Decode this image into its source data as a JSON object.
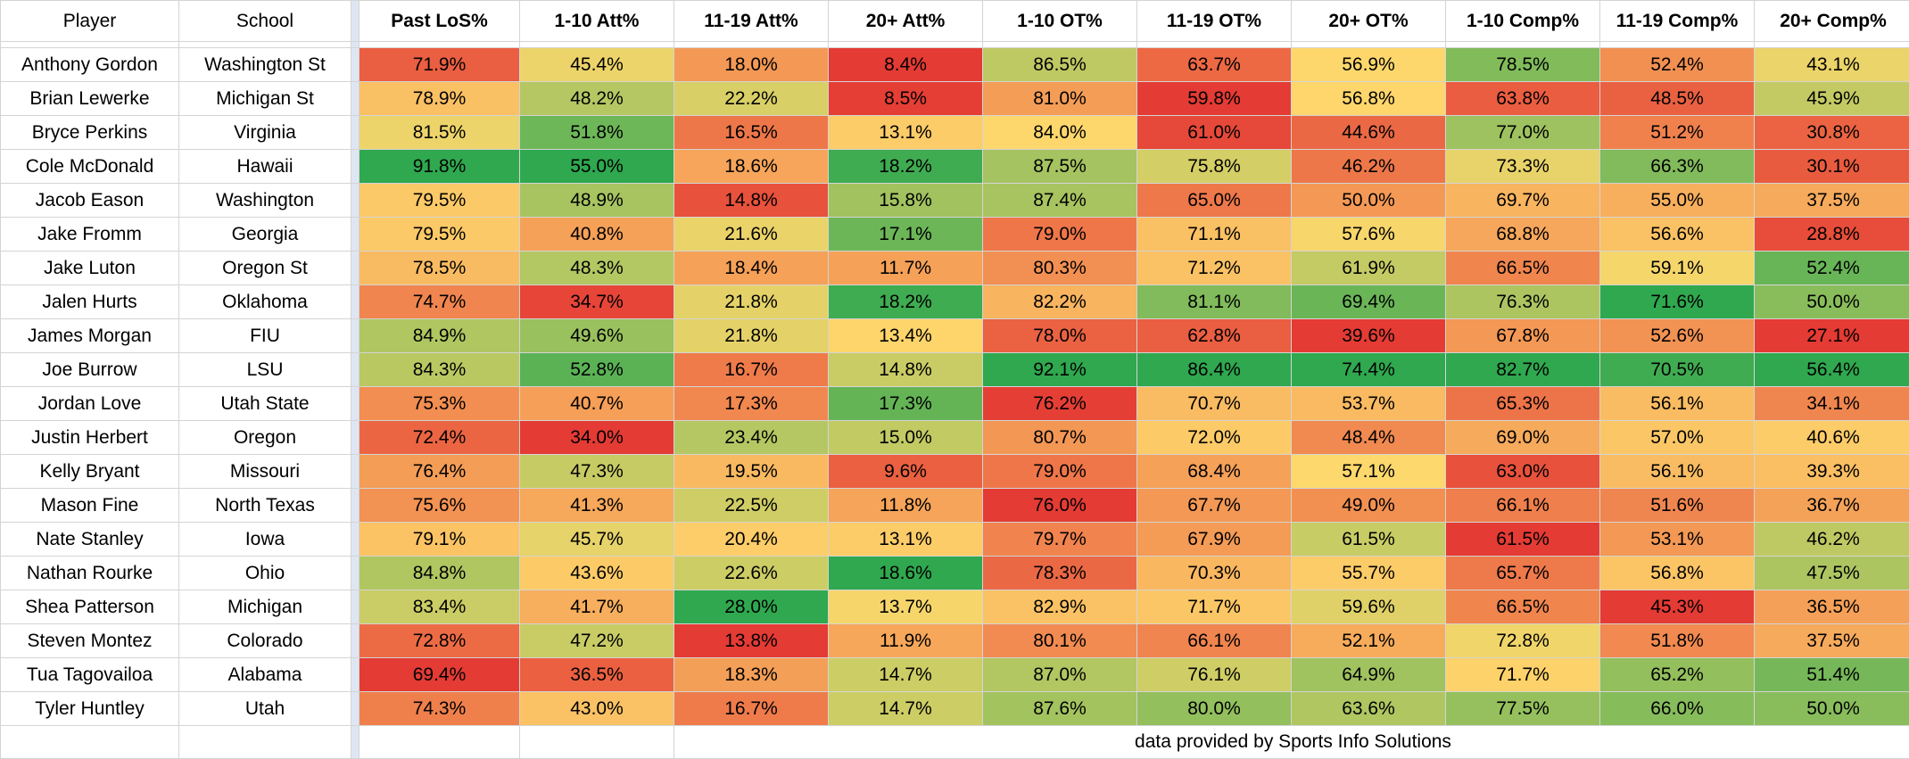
{
  "sheet": {
    "headers": {
      "player": "Player",
      "school": "School",
      "metrics": [
        "Past LoS%",
        "1-10 Att%",
        "11-19 Att%",
        "20+ Att%",
        "1-10 OT%",
        "11-19 OT%",
        "20+ OT%",
        "1-10 Comp%",
        "11-19 Comp%",
        "20+ Comp%"
      ]
    },
    "rows": [
      {
        "player": "Anthony Gordon",
        "school": "Washington St",
        "values": [
          "71.9%",
          "45.4%",
          "18.0%",
          "8.4%",
          "86.5%",
          "63.7%",
          "56.9%",
          "78.5%",
          "52.4%",
          "43.1%"
        ]
      },
      {
        "player": "Brian Lewerke",
        "school": "Michigan St",
        "values": [
          "78.9%",
          "48.2%",
          "22.2%",
          "8.5%",
          "81.0%",
          "59.8%",
          "56.8%",
          "63.8%",
          "48.5%",
          "45.9%"
        ]
      },
      {
        "player": "Bryce Perkins",
        "school": "Virginia",
        "values": [
          "81.5%",
          "51.8%",
          "16.5%",
          "13.1%",
          "84.0%",
          "61.0%",
          "44.6%",
          "77.0%",
          "51.2%",
          "30.8%"
        ]
      },
      {
        "player": "Cole McDonald",
        "school": "Hawaii",
        "values": [
          "91.8%",
          "55.0%",
          "18.6%",
          "18.2%",
          "87.5%",
          "75.8%",
          "46.2%",
          "73.3%",
          "66.3%",
          "30.1%"
        ]
      },
      {
        "player": "Jacob Eason",
        "school": "Washington",
        "values": [
          "79.5%",
          "48.9%",
          "14.8%",
          "15.8%",
          "87.4%",
          "65.0%",
          "50.0%",
          "69.7%",
          "55.0%",
          "37.5%"
        ]
      },
      {
        "player": "Jake Fromm",
        "school": "Georgia",
        "values": [
          "79.5%",
          "40.8%",
          "21.6%",
          "17.1%",
          "79.0%",
          "71.1%",
          "57.6%",
          "68.8%",
          "56.6%",
          "28.8%"
        ]
      },
      {
        "player": "Jake Luton",
        "school": "Oregon St",
        "values": [
          "78.5%",
          "48.3%",
          "18.4%",
          "11.7%",
          "80.3%",
          "71.2%",
          "61.9%",
          "66.5%",
          "59.1%",
          "52.4%"
        ]
      },
      {
        "player": "Jalen Hurts",
        "school": "Oklahoma",
        "values": [
          "74.7%",
          "34.7%",
          "21.8%",
          "18.2%",
          "82.2%",
          "81.1%",
          "69.4%",
          "76.3%",
          "71.6%",
          "50.0%"
        ]
      },
      {
        "player": "James Morgan",
        "school": "FIU",
        "values": [
          "84.9%",
          "49.6%",
          "21.8%",
          "13.4%",
          "78.0%",
          "62.8%",
          "39.6%",
          "67.8%",
          "52.6%",
          "27.1%"
        ]
      },
      {
        "player": "Joe Burrow",
        "school": "LSU",
        "values": [
          "84.3%",
          "52.8%",
          "16.7%",
          "14.8%",
          "92.1%",
          "86.4%",
          "74.4%",
          "82.7%",
          "70.5%",
          "56.4%"
        ]
      },
      {
        "player": "Jordan Love",
        "school": "Utah State",
        "values": [
          "75.3%",
          "40.7%",
          "17.3%",
          "17.3%",
          "76.2%",
          "70.7%",
          "53.7%",
          "65.3%",
          "56.1%",
          "34.1%"
        ]
      },
      {
        "player": "Justin Herbert",
        "school": "Oregon",
        "values": [
          "72.4%",
          "34.0%",
          "23.4%",
          "15.0%",
          "80.7%",
          "72.0%",
          "48.4%",
          "69.0%",
          "57.0%",
          "40.6%"
        ]
      },
      {
        "player": "Kelly Bryant",
        "school": "Missouri",
        "values": [
          "76.4%",
          "47.3%",
          "19.5%",
          "9.6%",
          "79.0%",
          "68.4%",
          "57.1%",
          "63.0%",
          "56.1%",
          "39.3%"
        ]
      },
      {
        "player": "Mason Fine",
        "school": "North Texas",
        "values": [
          "75.6%",
          "41.3%",
          "22.5%",
          "11.8%",
          "76.0%",
          "67.7%",
          "49.0%",
          "66.1%",
          "51.6%",
          "36.7%"
        ]
      },
      {
        "player": "Nate Stanley",
        "school": "Iowa",
        "values": [
          "79.1%",
          "45.7%",
          "20.4%",
          "13.1%",
          "79.7%",
          "67.9%",
          "61.5%",
          "61.5%",
          "53.1%",
          "46.2%"
        ]
      },
      {
        "player": "Nathan Rourke",
        "school": "Ohio",
        "values": [
          "84.8%",
          "43.6%",
          "22.6%",
          "18.6%",
          "78.3%",
          "70.3%",
          "55.7%",
          "65.7%",
          "56.8%",
          "47.5%"
        ]
      },
      {
        "player": "Shea Patterson",
        "school": "Michigan",
        "values": [
          "83.4%",
          "41.7%",
          "28.0%",
          "13.7%",
          "82.9%",
          "71.7%",
          "59.6%",
          "66.5%",
          "45.3%",
          "36.5%"
        ]
      },
      {
        "player": "Steven Montez",
        "school": "Colorado",
        "values": [
          "72.8%",
          "47.2%",
          "13.8%",
          "11.9%",
          "80.1%",
          "66.1%",
          "52.1%",
          "72.8%",
          "51.8%",
          "37.5%"
        ]
      },
      {
        "player": "Tua Tagovailoa",
        "school": "Alabama",
        "values": [
          "69.4%",
          "36.5%",
          "18.3%",
          "14.7%",
          "87.0%",
          "76.1%",
          "64.9%",
          "71.7%",
          "65.2%",
          "51.4%"
        ]
      },
      {
        "player": "Tyler Huntley",
        "school": "Utah",
        "values": [
          "74.3%",
          "43.0%",
          "16.7%",
          "14.7%",
          "87.6%",
          "80.0%",
          "63.6%",
          "77.5%",
          "66.0%",
          "50.0%"
        ]
      }
    ],
    "credit": "data provided by Sports Info Solutions"
  },
  "colors": {
    "scale_low": "#e43b34",
    "scale_mid": "#fed86c",
    "scale_high": "#2fa84f",
    "spacer": "#dfe6f3",
    "gridline": "#d4d4d4"
  }
}
